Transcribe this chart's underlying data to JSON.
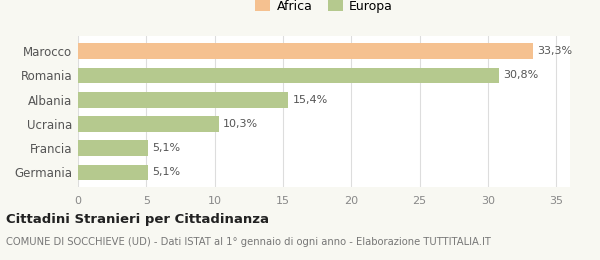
{
  "categories": [
    "Germania",
    "Francia",
    "Ucraina",
    "Albania",
    "Romania",
    "Marocco"
  ],
  "values": [
    5.1,
    5.1,
    10.3,
    15.4,
    30.8,
    33.3
  ],
  "labels": [
    "5,1%",
    "5,1%",
    "10,3%",
    "15,4%",
    "30,8%",
    "33,3%"
  ],
  "colors": [
    "#b5c98e",
    "#b5c98e",
    "#b5c98e",
    "#b5c98e",
    "#b5c98e",
    "#f5c190"
  ],
  "legend_items": [
    {
      "label": "Africa",
      "color": "#f5c190"
    },
    {
      "label": "Europa",
      "color": "#b5c98e"
    }
  ],
  "xlim": [
    0,
    36
  ],
  "xticks": [
    0,
    5,
    10,
    15,
    20,
    25,
    30,
    35
  ],
  "title": "Cittadini Stranieri per Cittadinanza",
  "subtitle": "COMUNE DI SOCCHIEVE (UD) - Dati ISTAT al 1° gennaio di ogni anno - Elaborazione TUTTITALIA.IT",
  "background_color": "#f8f8f2",
  "bar_background": "#ffffff",
  "grid_color": "#dddddd"
}
